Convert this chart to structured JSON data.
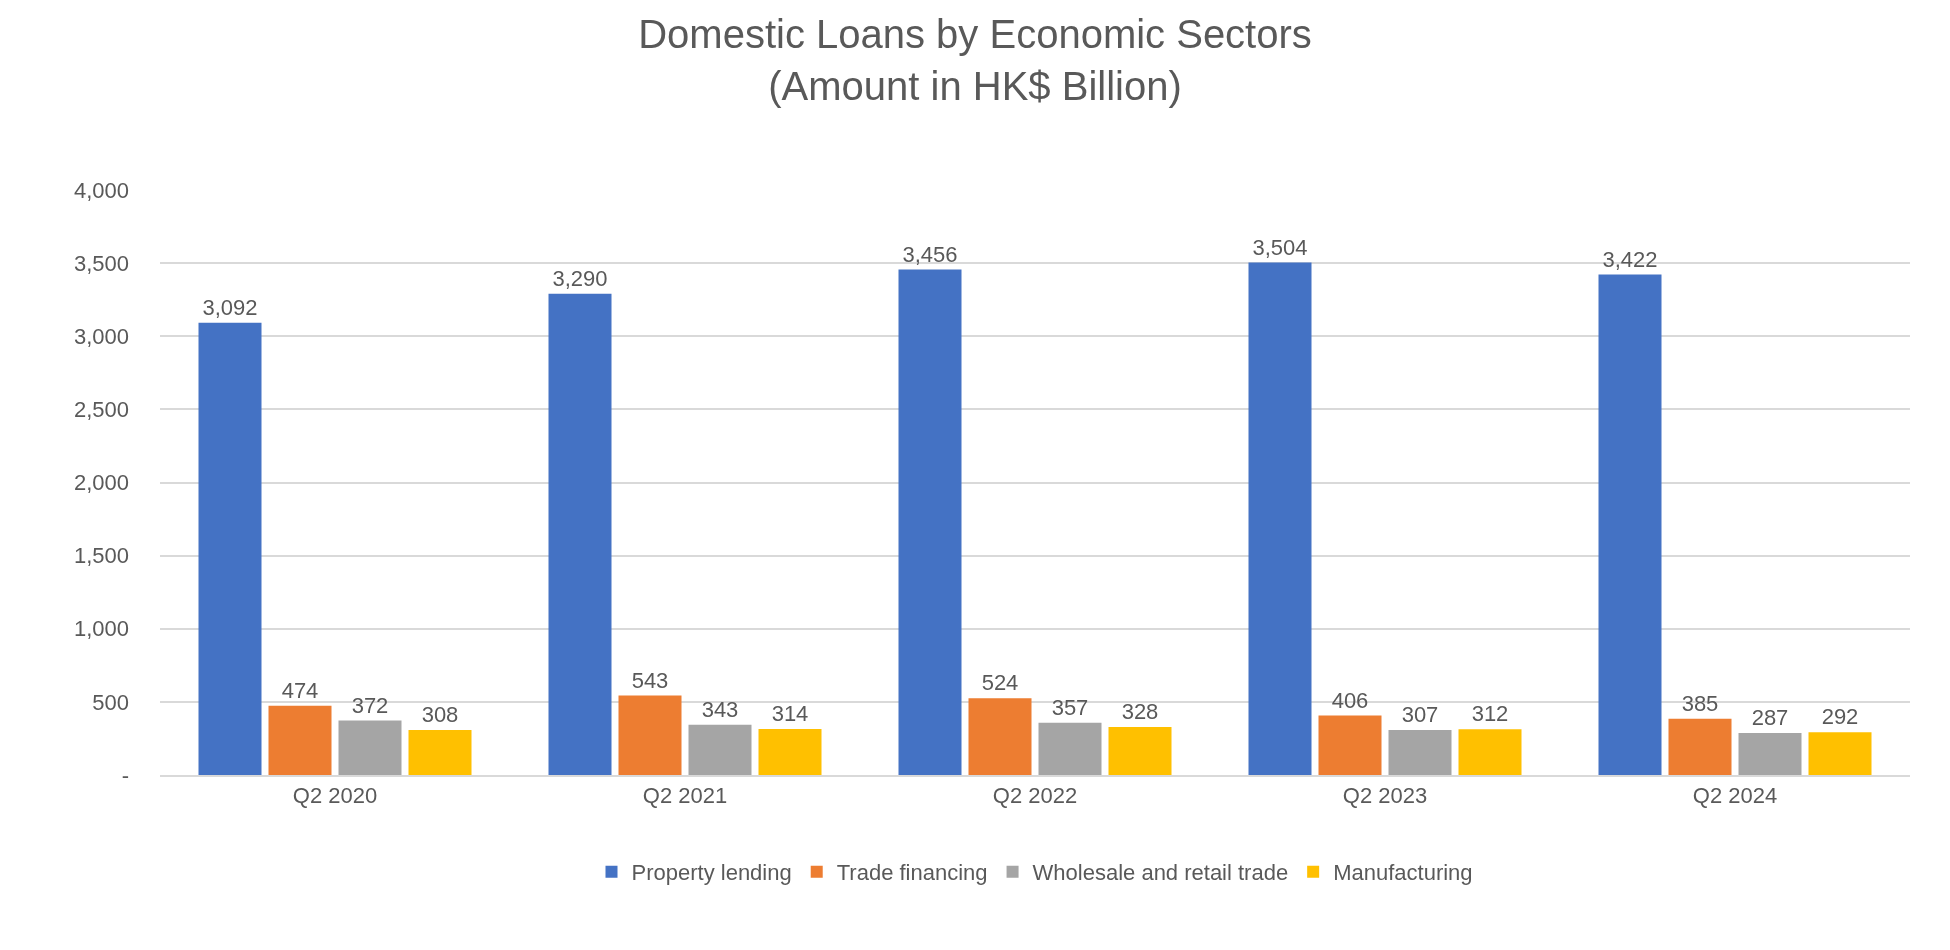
{
  "chart_data": {
    "type": "bar",
    "title": "Domestic Loans by Economic Sectors\n(Amount in HK$ Billion)",
    "categories": [
      "Q2 2020",
      "Q2 2021",
      "Q2 2022",
      "Q2 2023",
      "Q2 2024"
    ],
    "series": [
      {
        "name": "Property lending",
        "color": "#4472c4",
        "values": [
          3092,
          3290,
          3456,
          3504,
          3422
        ],
        "value_labels": [
          "3,092",
          "3,290",
          "3,456",
          "3,504",
          "3,422"
        ]
      },
      {
        "name": "Trade financing",
        "color": "#ed7d31",
        "values": [
          474,
          543,
          524,
          406,
          385
        ],
        "value_labels": [
          "474",
          "543",
          "524",
          "406",
          "385"
        ]
      },
      {
        "name": "Wholesale and retail trade",
        "color": "#a5a5a5",
        "values": [
          372,
          343,
          357,
          307,
          287
        ],
        "value_labels": [
          "372",
          "343",
          "357",
          "307",
          "287"
        ]
      },
      {
        "name": "Manufacturing",
        "color": "#ffc000",
        "values": [
          308,
          314,
          328,
          312,
          292
        ],
        "value_labels": [
          "308",
          "314",
          "328",
          "312",
          "292"
        ]
      }
    ],
    "ylim": [
      0,
      4000
    ],
    "yticks": [
      {
        "value": 0,
        "label": "-"
      },
      {
        "value": 500,
        "label": "500"
      },
      {
        "value": 1000,
        "label": "1,000"
      },
      {
        "value": 1500,
        "label": "1,500"
      },
      {
        "value": 2000,
        "label": "2,000"
      },
      {
        "value": 2500,
        "label": "2,500"
      },
      {
        "value": 3000,
        "label": "3,000"
      },
      {
        "value": 3500,
        "label": "3,500"
      },
      {
        "value": 4000,
        "label": "4,000"
      }
    ],
    "grid": "y",
    "legend": "bottom"
  }
}
